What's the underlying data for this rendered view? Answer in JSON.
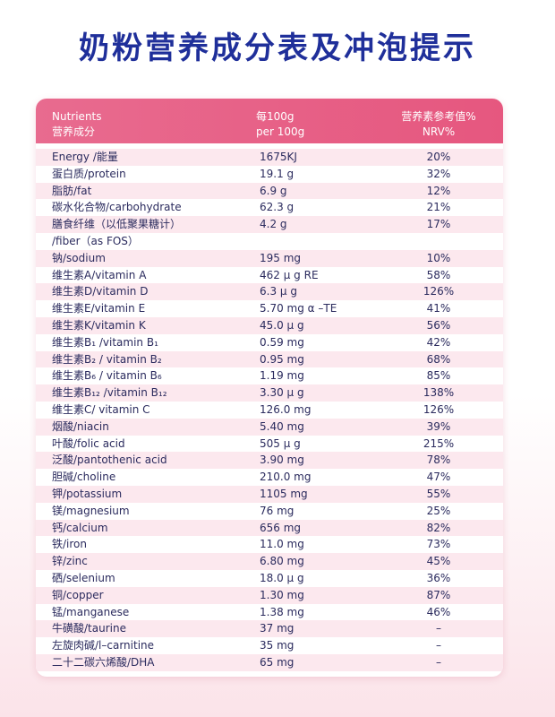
{
  "title": "奶粉营养成分表及冲泡提示",
  "table": {
    "header": {
      "nutrients_en": "Nutrients",
      "nutrients_zh": "营养成分",
      "amount_zh": "每100g",
      "amount_en": "per 100g",
      "nrv_zh": "营养素参考值%",
      "nrv_en": "NRV%"
    },
    "rows": [
      {
        "name": "Energy /能量",
        "amount": "1675KJ",
        "nrv": "20%"
      },
      {
        "name": "蛋白质/protein",
        "amount": "19.1 g",
        "nrv": "32%"
      },
      {
        "name": "脂肪/fat",
        "amount": "6.9 g",
        "nrv": "12%"
      },
      {
        "name": "碳水化合物/carbohydrate",
        "amount": "62.3 g",
        "nrv": "21%"
      },
      {
        "name": "膳食纤维（以低聚果糖计）",
        "amount": "4.2 g",
        "nrv": "17%"
      },
      {
        "name": "/fiber（as FOS）",
        "amount": "",
        "nrv": ""
      },
      {
        "name": "钠/sodium",
        "amount": "195 mg",
        "nrv": "10%"
      },
      {
        "name": "维生素A/vitamin A",
        "amount": "462 μ g RE",
        "nrv": "58%"
      },
      {
        "name": "维生素D/vitamin D",
        "amount": "6.3 μ g",
        "nrv": "126%"
      },
      {
        "name": "维生素E/vitamin E",
        "amount": "5.70 mg α –TE",
        "nrv": "41%"
      },
      {
        "name": "维生素K/vitamin K",
        "amount": "45.0 μ g",
        "nrv": "56%"
      },
      {
        "name": "维生素B₁ /vitamin B₁",
        "amount": "0.59 mg",
        "nrv": "42%"
      },
      {
        "name": "维生素B₂ / vitamin B₂",
        "amount": "0.95 mg",
        "nrv": "68%"
      },
      {
        "name": "维生素B₆ / vitamin B₆",
        "amount": "1.19 mg",
        "nrv": "85%"
      },
      {
        "name": "维生素B₁₂ /vitamin B₁₂",
        "amount": "3.30 μ g",
        "nrv": "138%"
      },
      {
        "name": "维生素C/ vitamin C",
        "amount": "126.0 mg",
        "nrv": "126%"
      },
      {
        "name": "烟酸/niacin",
        "amount": "5.40 mg",
        "nrv": "39%"
      },
      {
        "name": "叶酸/folic acid",
        "amount": "505 μ g",
        "nrv": "215%"
      },
      {
        "name": "泛酸/pantothenic acid",
        "amount": "3.90 mg",
        "nrv": "78%"
      },
      {
        "name": "胆碱/choline",
        "amount": "210.0 mg",
        "nrv": "47%"
      },
      {
        "name": "钾/potassium",
        "amount": "1105 mg",
        "nrv": "55%"
      },
      {
        "name": "镁/magnesium",
        "amount": "76 mg",
        "nrv": "25%"
      },
      {
        "name": "钙/calcium",
        "amount": "656 mg",
        "nrv": "82%"
      },
      {
        "name": "铁/iron",
        "amount": "11.0 mg",
        "nrv": "73%"
      },
      {
        "name": "锌/zinc",
        "amount": "6.80 mg",
        "nrv": "45%"
      },
      {
        "name": "硒/selenium",
        "amount": "18.0 μ g",
        "nrv": "36%"
      },
      {
        "name": "铜/copper",
        "amount": "1.30 mg",
        "nrv": "87%"
      },
      {
        "name": "锰/manganese",
        "amount": "1.38 mg",
        "nrv": "46%"
      },
      {
        "name": "牛磺酸/taurine",
        "amount": "37 mg",
        "nrv": "–"
      },
      {
        "name": "左旋肉碱/l–carnitine",
        "amount": "35 mg",
        "nrv": "–"
      },
      {
        "name": "二十二碳六烯酸/DHA",
        "amount": "65 mg",
        "nrv": "–"
      }
    ],
    "colors": {
      "header_bg": "#e6577f",
      "row_alt_bg": "#fce8ee",
      "title_color": "#1f2f9a",
      "text_color": "#2b2b5e"
    }
  }
}
